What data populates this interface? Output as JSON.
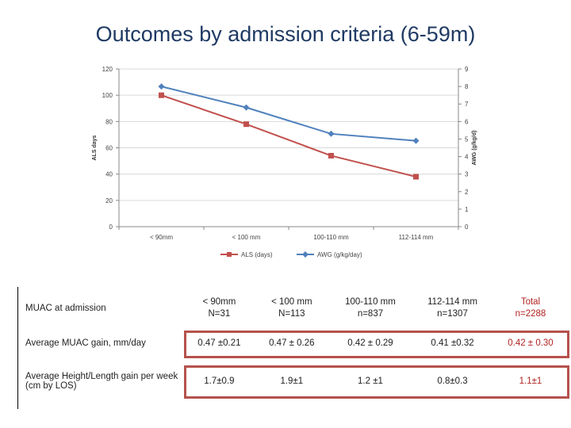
{
  "title": "Outcomes by admission criteria (6-59m)",
  "chart_data": {
    "type": "line",
    "categories": [
      "< 90mm",
      "< 100 mm",
      "100-110 mm",
      "112-114 mm"
    ],
    "series": [
      {
        "name": "ALS (days)",
        "axis": "left",
        "color": "#c0504d",
        "marker": "square",
        "values": [
          100,
          78,
          54,
          38
        ]
      },
      {
        "name": "AWG (g/kg/day)",
        "axis": "right",
        "color": "#4f81bd",
        "marker": "diamond",
        "values": [
          8.0,
          6.8,
          5.3,
          4.9
        ]
      }
    ],
    "ylabel_left": "ALS days",
    "ylabel_right": "AWG (g/kg/d)",
    "ylim_left": [
      0,
      120
    ],
    "ylim_right": [
      0,
      9
    ],
    "yticks_left": [
      0,
      20,
      40,
      60,
      80,
      100,
      120
    ],
    "yticks_right": [
      0,
      1,
      2,
      3,
      4,
      5,
      6,
      7,
      8,
      9
    ],
    "legend_position": "bottom"
  },
  "table": {
    "header": {
      "label": "MUAC at admission",
      "columns": [
        {
          "line1": "< 90mm",
          "line2": "N=31"
        },
        {
          "line1": "< 100 mm",
          "line2": "N=113"
        },
        {
          "line1": "100-110 mm",
          "line2": "n=837"
        },
        {
          "line1": "112-114 mm",
          "line2": "n=1307"
        },
        {
          "line1": "Total",
          "line2": "n=2288"
        }
      ]
    },
    "rows": [
      {
        "label": "Average MUAC gain, mm/day",
        "values": [
          "0.47 ±0.21",
          "0.47 ± 0.26",
          "0.42 ± 0.29",
          "0.41 ±0.32",
          "0.42 ± 0.30"
        ]
      },
      {
        "label": "Average Height/Length gain per week (cm by LOS)",
        "values": [
          "1.7±0.9",
          "1.9±1",
          "1.2 ±1",
          "0.8±0.3",
          "1.1±1"
        ]
      }
    ]
  },
  "colors": {
    "title": "#1f3a63",
    "als": "#c0504d",
    "awg": "#4f81bd",
    "highlight": "#b5524c",
    "total": "#b22222"
  }
}
